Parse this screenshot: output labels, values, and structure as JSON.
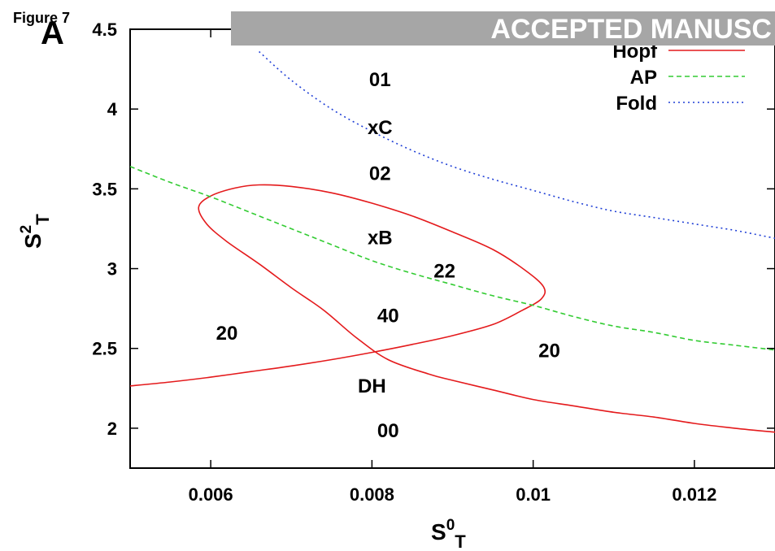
{
  "figure_label": "Figure 7",
  "panel_label": "A",
  "banner": {
    "text": "ACCEPTED MANUSC",
    "color": "#a6a6a6"
  },
  "chart_data": {
    "type": "line",
    "xlabel": {
      "base": "S",
      "sup": "0",
      "sub": "T"
    },
    "ylabel": {
      "base": "S",
      "sup": "2",
      "sub": "T"
    },
    "xlim": [
      0.005,
      0.013
    ],
    "ylim": [
      1.75,
      4.5
    ],
    "x_ticks": [
      {
        "value": 0.006,
        "label": "0.006"
      },
      {
        "value": 0.008,
        "label": "0.008"
      },
      {
        "value": 0.01,
        "label": "0.01"
      },
      {
        "value": 0.012,
        "label": "0.012"
      }
    ],
    "y_ticks": [
      {
        "value": 2.0,
        "label": "2"
      },
      {
        "value": 2.5,
        "label": "2.5"
      },
      {
        "value": 3.0,
        "label": "3"
      },
      {
        "value": 3.5,
        "label": "3.5"
      },
      {
        "value": 4.0,
        "label": "4"
      },
      {
        "value": 4.5,
        "label": "4.5"
      }
    ],
    "grid": false,
    "legend_position": "top-right",
    "series": [
      {
        "name": "Hopf",
        "color": "#e41a1c",
        "dash": "solid",
        "curves": [
          [
            [
              0.005,
              2.265
            ],
            [
              0.0055,
              2.29
            ],
            [
              0.006,
              2.32
            ],
            [
              0.0065,
              2.355
            ],
            [
              0.007,
              2.39
            ],
            [
              0.0075,
              2.43
            ],
            [
              0.008,
              2.475
            ],
            [
              0.0085,
              2.525
            ],
            [
              0.009,
              2.58
            ],
            [
              0.0095,
              2.65
            ],
            [
              0.00985,
              2.735
            ],
            [
              0.0101,
              2.81
            ],
            [
              0.01013,
              2.885
            ],
            [
              0.0099,
              2.99
            ],
            [
              0.0095,
              3.12
            ],
            [
              0.009,
              3.23
            ],
            [
              0.0085,
              3.33
            ],
            [
              0.008,
              3.41
            ],
            [
              0.0075,
              3.475
            ],
            [
              0.007,
              3.515
            ],
            [
              0.0066,
              3.525
            ],
            [
              0.0063,
              3.505
            ],
            [
              0.006,
              3.455
            ],
            [
              0.00585,
              3.385
            ],
            [
              0.00595,
              3.28
            ],
            [
              0.0062,
              3.17
            ],
            [
              0.0066,
              3.03
            ],
            [
              0.007,
              2.88
            ],
            [
              0.0074,
              2.74
            ],
            [
              0.0078,
              2.57
            ],
            [
              0.0082,
              2.43
            ],
            [
              0.0087,
              2.34
            ],
            [
              0.009,
              2.3
            ],
            [
              0.0095,
              2.24
            ],
            [
              0.01,
              2.18
            ],
            [
              0.0105,
              2.14
            ],
            [
              0.011,
              2.1
            ],
            [
              0.0115,
              2.07
            ],
            [
              0.012,
              2.03
            ],
            [
              0.0125,
              2.0
            ],
            [
              0.013,
              1.975
            ]
          ]
        ]
      },
      {
        "name": "AP",
        "color": "#33cc33",
        "dash": "6,4",
        "curves": [
          [
            [
              0.005,
              3.64
            ],
            [
              0.0055,
              3.54
            ],
            [
              0.006,
              3.45
            ],
            [
              0.0065,
              3.35
            ],
            [
              0.007,
              3.25
            ],
            [
              0.0075,
              3.15
            ],
            [
              0.008,
              3.05
            ],
            [
              0.0085,
              2.97
            ],
            [
              0.009,
              2.9
            ],
            [
              0.0095,
              2.83
            ],
            [
              0.01,
              2.77
            ],
            [
              0.0105,
              2.7
            ],
            [
              0.011,
              2.64
            ],
            [
              0.0115,
              2.6
            ],
            [
              0.012,
              2.55
            ],
            [
              0.0125,
              2.52
            ],
            [
              0.013,
              2.49
            ]
          ]
        ]
      },
      {
        "name": "Fold",
        "color": "#1f3fd6",
        "dash": "2,4",
        "curves": [
          [
            [
              0.0066,
              4.36
            ],
            [
              0.007,
              4.18
            ],
            [
              0.0075,
              4.0
            ],
            [
              0.008,
              3.86
            ],
            [
              0.0085,
              3.74
            ],
            [
              0.009,
              3.64
            ],
            [
              0.0095,
              3.56
            ],
            [
              0.01,
              3.49
            ],
            [
              0.0105,
              3.42
            ],
            [
              0.011,
              3.36
            ],
            [
              0.0115,
              3.32
            ],
            [
              0.012,
              3.28
            ],
            [
              0.0125,
              3.24
            ],
            [
              0.013,
              3.19
            ]
          ]
        ]
      }
    ],
    "annotations": [
      {
        "text": "01",
        "x": 0.0081,
        "y": 4.19
      },
      {
        "text": "xC",
        "x": 0.0081,
        "y": 3.89
      },
      {
        "text": "02",
        "x": 0.0081,
        "y": 3.6
      },
      {
        "text": "xB",
        "x": 0.0081,
        "y": 3.2
      },
      {
        "text": "22",
        "x": 0.0089,
        "y": 2.99
      },
      {
        "text": "40",
        "x": 0.0082,
        "y": 2.71
      },
      {
        "text": "20",
        "x": 0.0062,
        "y": 2.6
      },
      {
        "text": "20",
        "x": 0.0102,
        "y": 2.49
      },
      {
        "text": "DH",
        "x": 0.008,
        "y": 2.27
      },
      {
        "text": "00",
        "x": 0.0082,
        "y": 1.99
      }
    ]
  }
}
